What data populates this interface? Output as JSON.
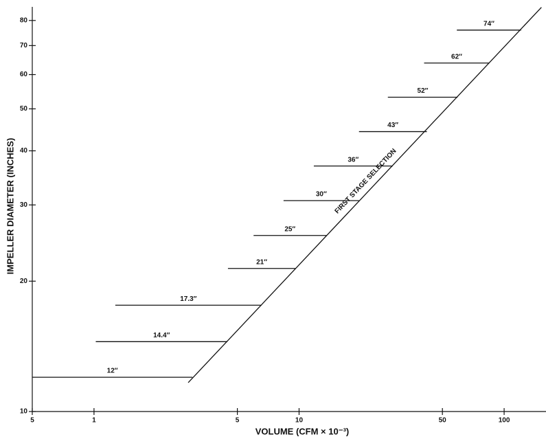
{
  "chart_data": {
    "type": "line",
    "x_label": "VOLUME (CFM × 10⁻³)",
    "y_label": "IMPELLER DIAMETER (INCHES)",
    "annotation": "FIRST STAGE SELECTION",
    "xscale": "log",
    "yscale": "log",
    "xlim": [
      0.5,
      160
    ],
    "ylim": [
      10,
      86
    ],
    "xticks": [
      {
        "value": 0.5,
        "label": "5"
      },
      1,
      5,
      10,
      50,
      100
    ],
    "yticks": [
      10,
      20,
      30,
      40,
      50,
      60,
      70,
      80
    ],
    "color": "#111111",
    "series": [
      {
        "name": "12″",
        "x": [
          0.5,
          3.02
        ],
        "values": [
          12.0,
          12.0
        ]
      },
      {
        "name": "14.4″",
        "x": [
          1.02,
          4.47
        ],
        "values": [
          14.5,
          14.5
        ]
      },
      {
        "name": "17.3″",
        "x": [
          1.27,
          6.56
        ],
        "values": [
          17.6,
          17.6
        ]
      },
      {
        "name": "21″",
        "x": [
          4.5,
          9.6
        ],
        "values": [
          21.4,
          21.4
        ]
      },
      {
        "name": "25″",
        "x": [
          6.0,
          13.6
        ],
        "values": [
          25.5,
          25.5
        ]
      },
      {
        "name": "30″",
        "x": [
          8.4,
          19.6
        ],
        "values": [
          30.7,
          30.7
        ]
      },
      {
        "name": "36″",
        "x": [
          11.8,
          28.6
        ],
        "values": [
          36.9,
          36.9
        ]
      },
      {
        "name": "43″",
        "x": [
          19.6,
          42.0
        ],
        "values": [
          44.3,
          44.3
        ]
      },
      {
        "name": "52″",
        "x": [
          27.1,
          59.3
        ],
        "values": [
          53.2,
          53.2
        ]
      },
      {
        "name": "62″",
        "x": [
          40.7,
          84.7
        ],
        "values": [
          63.8,
          63.8
        ]
      },
      {
        "name": "74″",
        "x": [
          58.8,
          121
        ],
        "values": [
          76.0,
          76.0
        ]
      }
    ],
    "selection_line": {
      "x": [
        2.88,
        152
      ],
      "values": [
        11.66,
        85.8
      ]
    }
  }
}
